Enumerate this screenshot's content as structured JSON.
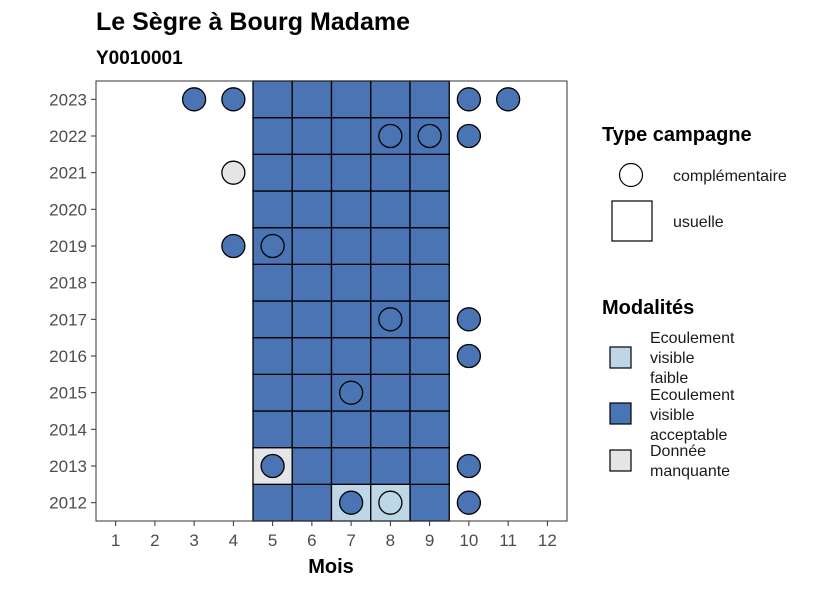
{
  "chart_data": {
    "type": "heatmap",
    "title": "Le Sègre à Bourg Madame",
    "subtitle": "Y0010001",
    "xlabel": "Mois",
    "ylabel": "",
    "x_ticks": [
      1,
      2,
      3,
      4,
      5,
      6,
      7,
      8,
      9,
      10,
      11,
      12
    ],
    "y_ticks": [
      2012,
      2013,
      2014,
      2015,
      2016,
      2017,
      2018,
      2019,
      2020,
      2021,
      2022,
      2023
    ],
    "colors": {
      "Ecoulement visible faible": "#bdd7e7",
      "Ecoulement visible acceptable": "#4a74b4",
      "Donnée manquante": "#e5e5e5"
    },
    "legend_type": {
      "title": "Type campagne",
      "items": [
        {
          "label": "complémentaire",
          "shape": "circle"
        },
        {
          "label": "usuelle",
          "shape": "square"
        }
      ]
    },
    "legend_modalites": {
      "title": "Modalités",
      "items": [
        {
          "lines": [
            "Ecoulement",
            "visible",
            "faible"
          ],
          "color": "#bdd7e7"
        },
        {
          "lines": [
            "Ecoulement",
            "visible",
            "acceptable"
          ],
          "color": "#4a74b4"
        },
        {
          "lines": [
            "Donnée",
            "manquante"
          ],
          "color": "#e5e5e5"
        }
      ]
    },
    "usuelle": [
      {
        "year": 2012,
        "months": [
          5,
          6,
          9
        ],
        "value": "Ecoulement visible acceptable"
      },
      {
        "year": 2012,
        "months": [
          7,
          8
        ],
        "value": "Ecoulement visible faible"
      },
      {
        "year": 2013,
        "months": [
          5
        ],
        "value": "Donnée manquante"
      },
      {
        "year": 2013,
        "months": [
          6,
          7,
          8,
          9
        ],
        "value": "Ecoulement visible acceptable"
      },
      {
        "year": 2014,
        "months": [
          5,
          6,
          7,
          8,
          9
        ],
        "value": "Ecoulement visible acceptable"
      },
      {
        "year": 2015,
        "months": [
          5,
          6,
          7,
          8,
          9
        ],
        "value": "Ecoulement visible acceptable"
      },
      {
        "year": 2016,
        "months": [
          5,
          6,
          7,
          8,
          9
        ],
        "value": "Ecoulement visible acceptable"
      },
      {
        "year": 2017,
        "months": [
          5,
          6,
          7,
          8,
          9
        ],
        "value": "Ecoulement visible acceptable"
      },
      {
        "year": 2018,
        "months": [
          5,
          6,
          7,
          8,
          9
        ],
        "value": "Ecoulement visible acceptable"
      },
      {
        "year": 2019,
        "months": [
          5,
          6,
          7,
          8,
          9
        ],
        "value": "Ecoulement visible acceptable"
      },
      {
        "year": 2020,
        "months": [
          5,
          6,
          7,
          8,
          9
        ],
        "value": "Ecoulement visible acceptable"
      },
      {
        "year": 2021,
        "months": [
          5,
          6,
          7,
          8,
          9
        ],
        "value": "Ecoulement visible acceptable"
      },
      {
        "year": 2022,
        "months": [
          5,
          6,
          7,
          8,
          9
        ],
        "value": "Ecoulement visible acceptable"
      },
      {
        "year": 2023,
        "months": [
          5,
          6,
          7,
          8,
          9
        ],
        "value": "Ecoulement visible acceptable"
      }
    ],
    "complementaire": [
      {
        "year": 2012,
        "month": 7,
        "value": "Ecoulement visible acceptable"
      },
      {
        "year": 2012,
        "month": 8,
        "value": "Ecoulement visible faible"
      },
      {
        "year": 2012,
        "month": 10,
        "value": "Ecoulement visible acceptable"
      },
      {
        "year": 2013,
        "month": 5,
        "value": "Ecoulement visible acceptable"
      },
      {
        "year": 2013,
        "month": 10,
        "value": "Ecoulement visible acceptable"
      },
      {
        "year": 2015,
        "month": 7,
        "value": "Ecoulement visible acceptable"
      },
      {
        "year": 2016,
        "month": 10,
        "value": "Ecoulement visible acceptable"
      },
      {
        "year": 2017,
        "month": 8,
        "value": "Ecoulement visible acceptable"
      },
      {
        "year": 2017,
        "month": 10,
        "value": "Ecoulement visible acceptable"
      },
      {
        "year": 2019,
        "month": 4,
        "value": "Ecoulement visible acceptable"
      },
      {
        "year": 2019,
        "month": 5,
        "value": "Ecoulement visible acceptable"
      },
      {
        "year": 2021,
        "month": 4,
        "value": "Donnée manquante"
      },
      {
        "year": 2022,
        "month": 8,
        "value": "Ecoulement visible acceptable"
      },
      {
        "year": 2022,
        "month": 9,
        "value": "Ecoulement visible acceptable"
      },
      {
        "year": 2022,
        "month": 10,
        "value": "Ecoulement visible acceptable"
      },
      {
        "year": 2023,
        "month": 3,
        "value": "Ecoulement visible acceptable"
      },
      {
        "year": 2023,
        "month": 4,
        "value": "Ecoulement visible acceptable"
      },
      {
        "year": 2023,
        "month": 10,
        "value": "Ecoulement visible acceptable"
      },
      {
        "year": 2023,
        "month": 11,
        "value": "Ecoulement visible acceptable"
      }
    ]
  }
}
